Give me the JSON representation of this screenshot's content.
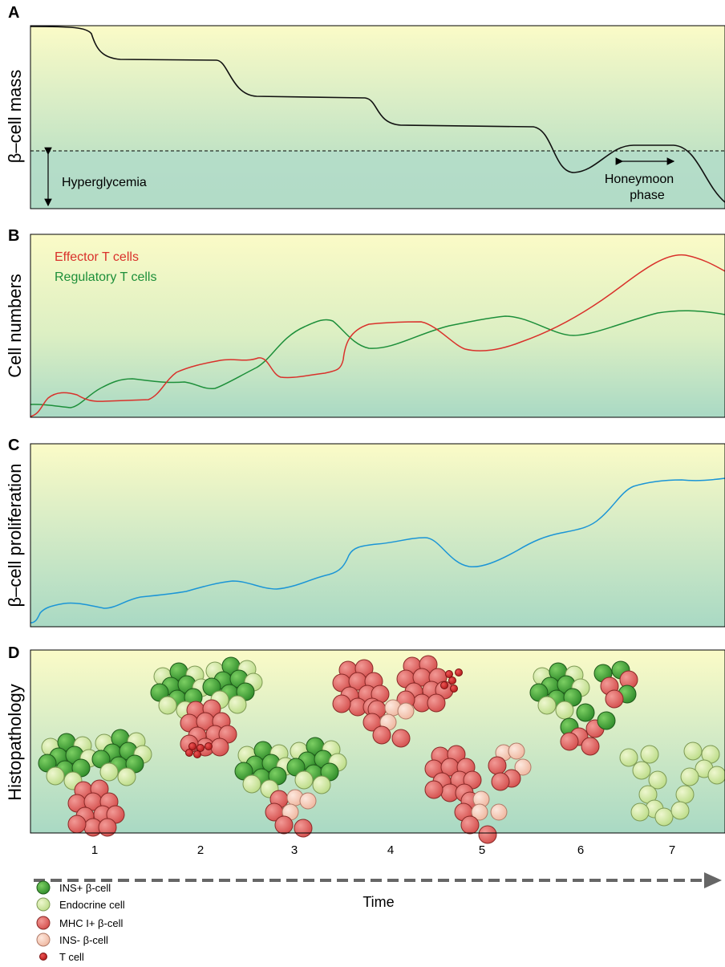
{
  "panels": {
    "a": {
      "letter": "A",
      "ylabel": "β–cell mass",
      "annot_hyper": "Hyperglycemia",
      "annot_honey_1": "Honeymoon",
      "annot_honey_2": "phase"
    },
    "b": {
      "letter": "B",
      "ylabel": "Cell numbers",
      "legend_effector": "Effector T cells",
      "legend_regulatory": "Regulatory T cells"
    },
    "c": {
      "letter": "C",
      "ylabel": "β–cell proliferation"
    },
    "d": {
      "letter": "D",
      "ylabel": "Histopathology"
    }
  },
  "time_axis": {
    "label": "Time",
    "stages": [
      "1",
      "2",
      "3",
      "4",
      "5",
      "6",
      "7"
    ]
  },
  "legend": [
    {
      "label": "INS+ β-cell",
      "kind": "ins_pos"
    },
    {
      "label": "Endocrine cell",
      "kind": "endocrine"
    },
    {
      "label": "MHC I+ β-cell",
      "kind": "mhc"
    },
    {
      "label": "INS- β-cell",
      "kind": "ins_neg"
    },
    {
      "label": "T cell",
      "kind": "tcell"
    }
  ],
  "colors": {
    "panel_top": "#fbfbc7",
    "panel_bottom": "#a9d9c4",
    "hyper_zone": "#b3dcc8",
    "effector": "#d9312b",
    "regulatory": "#1d8f3a",
    "proliferation": "#1b95d6",
    "ins_pos": "#4aa83d",
    "endocrine": "#d4e9a4",
    "mhc": "#e46d6b",
    "ins_neg": "#f7cfbc",
    "tcell": "#cc2222",
    "arrow": "#666666"
  },
  "chart_data": [
    {
      "type": "line",
      "title": "",
      "ylabel": "β–cell mass",
      "xlabel": "Time",
      "series": [
        {
          "name": "",
          "x": [
            0,
            0.5,
            1,
            1.5,
            2,
            2.5,
            3,
            3.5,
            4,
            4.5,
            5,
            5.5,
            6,
            6.5,
            7,
            7.4
          ],
          "y": [
            1.0,
            0.92,
            0.81,
            0.81,
            0.74,
            0.61,
            0.61,
            0.59,
            0.45,
            0.44,
            0.45,
            0.43,
            0.18,
            0.34,
            0.35,
            0.0
          ]
        }
      ],
      "threshold": "Hyperglycemia",
      "annotations": [
        "Honeymoon phase"
      ]
    },
    {
      "type": "line",
      "title": "",
      "ylabel": "Cell numbers",
      "xlabel": "Time",
      "series": [
        {
          "name": "Effector T cells",
          "x": [
            0,
            0.5,
            1,
            1.5,
            2,
            2.5,
            3,
            3.5,
            4,
            4.5,
            5,
            5.5,
            6,
            6.5,
            7,
            7.4
          ],
          "y": [
            0.02,
            0.1,
            0.07,
            0.1,
            0.25,
            0.32,
            0.2,
            0.28,
            0.52,
            0.5,
            0.37,
            0.38,
            0.52,
            0.7,
            0.88,
            0.78
          ]
        },
        {
          "name": "Regulatory T cells",
          "x": [
            0,
            0.5,
            1,
            1.5,
            2,
            2.5,
            3,
            3.5,
            4,
            4.5,
            5,
            5.5,
            6,
            6.5,
            7,
            7.4
          ],
          "y": [
            0.07,
            0.06,
            0.2,
            0.22,
            0.15,
            0.35,
            0.53,
            0.44,
            0.43,
            0.52,
            0.55,
            0.45,
            0.47,
            0.55,
            0.58,
            0.56
          ]
        }
      ]
    },
    {
      "type": "line",
      "title": "",
      "ylabel": "β–cell proliferation",
      "xlabel": "Time",
      "series": [
        {
          "name": "",
          "x": [
            0,
            0.5,
            1,
            1.5,
            2,
            2.5,
            3,
            3.5,
            4,
            4.5,
            5,
            5.5,
            6,
            6.5,
            7,
            7.4
          ],
          "y": [
            0.02,
            0.11,
            0.09,
            0.17,
            0.22,
            0.23,
            0.22,
            0.28,
            0.45,
            0.48,
            0.33,
            0.45,
            0.56,
            0.68,
            0.7,
            0.71
          ]
        }
      ]
    }
  ]
}
